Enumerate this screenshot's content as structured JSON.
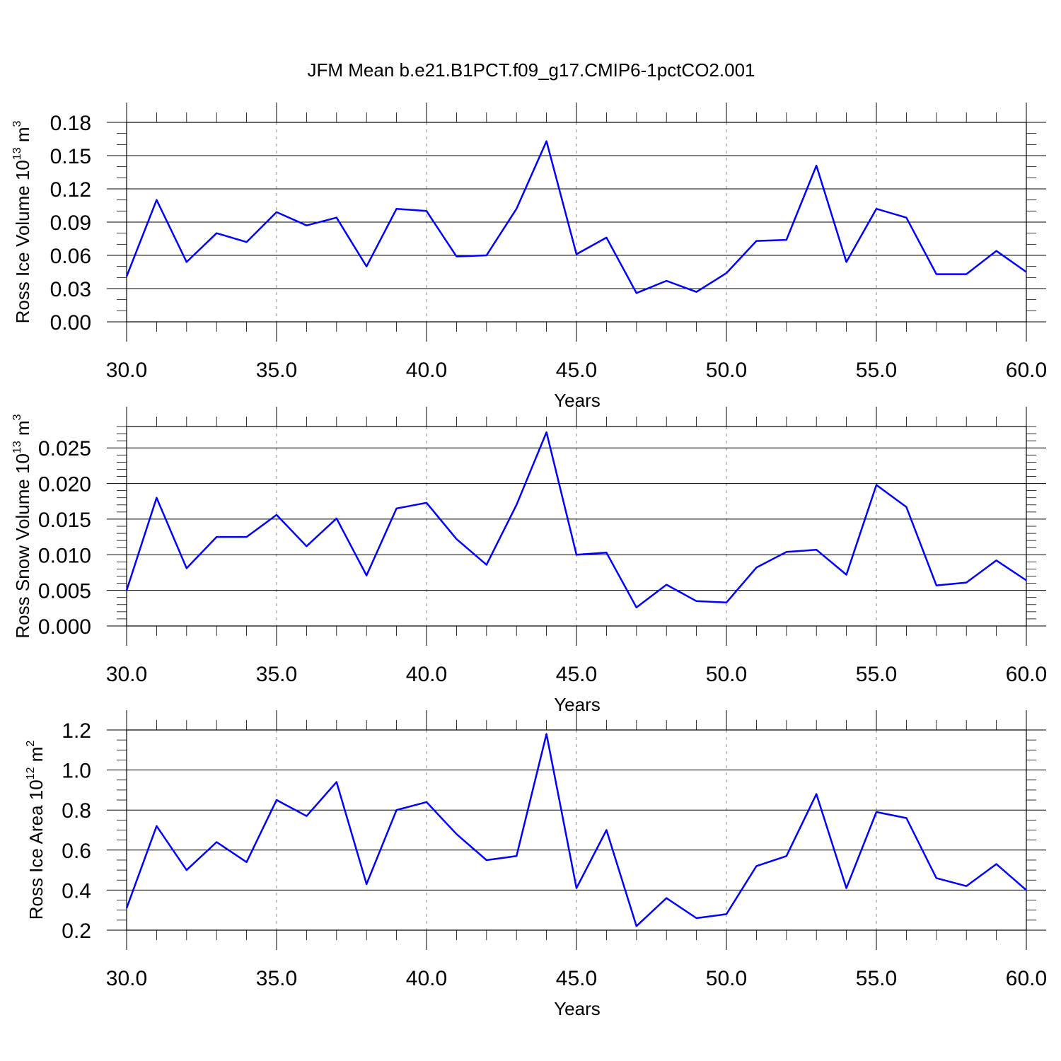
{
  "title": "JFM Mean b.e21.B1PCT.f09_g17.CMIP6-1pctCO2.001",
  "colors": {
    "line": "#0000ff",
    "axis": "#000000",
    "grid": "#888888"
  },
  "chart_data": [
    {
      "type": "line",
      "xlabel": "Years",
      "ylabel_main": "Ross Ice Volume 10",
      "ylabel_sup": "13",
      "ylabel_unit": " m",
      "ylabel_unit_sup": "3",
      "xlim": [
        30,
        60
      ],
      "ylim": [
        0,
        0.18
      ],
      "xticks": [
        30,
        35,
        40,
        45,
        50,
        55,
        60
      ],
      "xtick_labels": [
        "30.0",
        "35.0",
        "40.0",
        "45.0",
        "50.0",
        "55.0",
        "60.0"
      ],
      "yticks": [
        0,
        0.03,
        0.06,
        0.09,
        0.12,
        0.15,
        0.18
      ],
      "ytick_labels": [
        "0.00",
        "0.03",
        "0.06",
        "0.09",
        "0.12",
        "0.15",
        "0.18"
      ],
      "yminor_step": 0.01,
      "grid": "vertical dashed at major x ticks",
      "x": [
        30,
        31,
        32,
        33,
        34,
        35,
        36,
        37,
        38,
        39,
        40,
        41,
        42,
        43,
        44,
        45,
        46,
        47,
        48,
        49,
        50,
        51,
        52,
        53,
        54,
        55,
        56,
        57,
        58,
        59,
        60
      ],
      "values": [
        0.041,
        0.11,
        0.054,
        0.08,
        0.072,
        0.099,
        0.087,
        0.094,
        0.05,
        0.102,
        0.1,
        0.059,
        0.06,
        0.102,
        0.163,
        0.061,
        0.076,
        0.026,
        0.037,
        0.027,
        0.044,
        0.073,
        0.074,
        0.141,
        0.054,
        0.102,
        0.094,
        0.043,
        0.043,
        0.064,
        0.045
      ]
    },
    {
      "type": "line",
      "xlabel": "Years",
      "ylabel_main": "Ross Snow Volume 10",
      "ylabel_sup": "13",
      "ylabel_unit": " m",
      "ylabel_unit_sup": "3",
      "xlim": [
        30,
        60
      ],
      "ylim": [
        0,
        0.028
      ],
      "xticks": [
        30,
        35,
        40,
        45,
        50,
        55,
        60
      ],
      "xtick_labels": [
        "30.0",
        "35.0",
        "40.0",
        "45.0",
        "50.0",
        "55.0",
        "60.0"
      ],
      "yticks": [
        0,
        0.005,
        0.01,
        0.015,
        0.02,
        0.025
      ],
      "ytick_labels": [
        "0.000",
        "0.005",
        "0.010",
        "0.015",
        "0.020",
        "0.025"
      ],
      "yminor_step": 0.001,
      "grid": "vertical dashed at major x ticks",
      "x": [
        30,
        31,
        32,
        33,
        34,
        35,
        36,
        37,
        38,
        39,
        40,
        41,
        42,
        43,
        44,
        45,
        46,
        47,
        48,
        49,
        50,
        51,
        52,
        53,
        54,
        55,
        56,
        57,
        58,
        59,
        60
      ],
      "values": [
        0.005,
        0.018,
        0.0081,
        0.0125,
        0.0125,
        0.0156,
        0.0112,
        0.0151,
        0.0071,
        0.0165,
        0.0173,
        0.0122,
        0.0086,
        0.017,
        0.0272,
        0.01,
        0.0103,
        0.0026,
        0.0058,
        0.0035,
        0.0033,
        0.0082,
        0.0104,
        0.0107,
        0.0072,
        0.0198,
        0.0167,
        0.0057,
        0.0061,
        0.0092,
        0.0064
      ]
    },
    {
      "type": "line",
      "xlabel": "Years",
      "ylabel_main": "Ross Ice Area 10",
      "ylabel_sup": "12",
      "ylabel_unit": " m",
      "ylabel_unit_sup": "2",
      "xlim": [
        30,
        60
      ],
      "ylim": [
        0.2,
        1.2
      ],
      "xticks": [
        30,
        35,
        40,
        45,
        50,
        55,
        60
      ],
      "xtick_labels": [
        "30.0",
        "35.0",
        "40.0",
        "45.0",
        "50.0",
        "55.0",
        "60.0"
      ],
      "yticks": [
        0.2,
        0.4,
        0.6,
        0.8,
        1.0,
        1.2
      ],
      "ytick_labels": [
        "0.2",
        "0.4",
        "0.6",
        "0.8",
        "1.0",
        "1.2"
      ],
      "yminor_step": 0.05,
      "grid": "vertical dashed at major x ticks",
      "x": [
        30,
        31,
        32,
        33,
        34,
        35,
        36,
        37,
        38,
        39,
        40,
        41,
        42,
        43,
        44,
        45,
        46,
        47,
        48,
        49,
        50,
        51,
        52,
        53,
        54,
        55,
        56,
        57,
        58,
        59,
        60
      ],
      "values": [
        0.31,
        0.72,
        0.5,
        0.64,
        0.54,
        0.85,
        0.77,
        0.94,
        0.43,
        0.8,
        0.84,
        0.68,
        0.55,
        0.57,
        1.18,
        0.41,
        0.7,
        0.22,
        0.36,
        0.26,
        0.28,
        0.52,
        0.57,
        0.88,
        0.41,
        0.79,
        0.76,
        0.46,
        0.42,
        0.53,
        0.4
      ]
    }
  ]
}
